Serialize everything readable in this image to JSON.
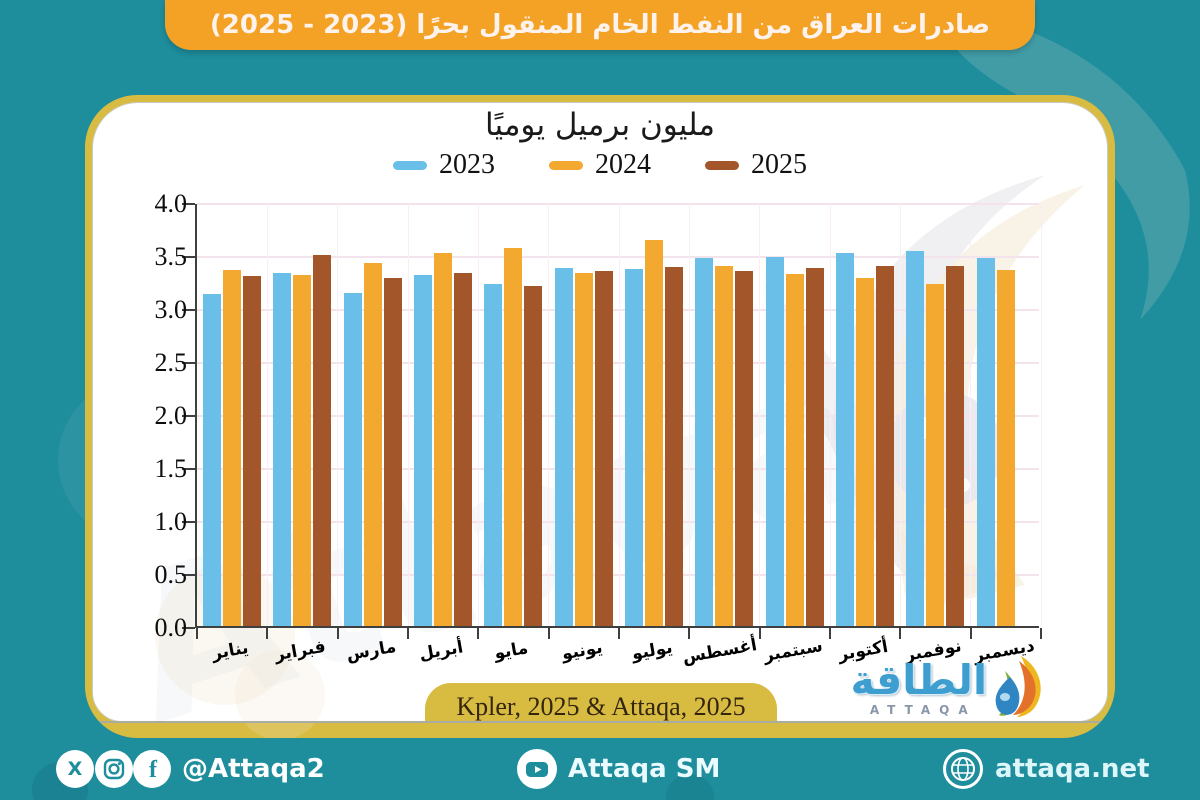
{
  "header": {
    "title": "صادرات العراق من النفط الخام المنقول بحرًا (2023 - 2025)"
  },
  "chart_data": {
    "type": "bar",
    "title": "مليون برميل يوميًا",
    "categories": [
      "يناير",
      "فبراير",
      "مارس",
      "أبريل",
      "مايو",
      "يونيو",
      "يوليو",
      "أغسطس",
      "سبتمبر",
      "أكتوبر",
      "نوفمبر",
      "ديسمبر"
    ],
    "series": [
      {
        "name": "2023",
        "color": "#6abfe9",
        "values": [
          3.13,
          3.33,
          3.14,
          3.31,
          3.23,
          3.38,
          3.37,
          3.47,
          3.48,
          3.52,
          3.54,
          3.47
        ]
      },
      {
        "name": "2024",
        "color": "#f3a82f",
        "values": [
          3.36,
          3.31,
          3.42,
          3.52,
          3.57,
          3.33,
          3.64,
          3.4,
          3.32,
          3.28,
          3.23,
          3.36
        ]
      },
      {
        "name": "2025",
        "color": "#a3562a",
        "values": [
          3.3,
          3.5,
          3.28,
          3.33,
          3.21,
          3.35,
          3.39,
          3.35,
          3.38,
          3.4,
          3.4,
          null
        ]
      }
    ],
    "ylim": [
      0,
      4.0
    ],
    "ytick_step": 0.5,
    "yticks": [
      "0.0",
      "0.5",
      "1.0",
      "1.5",
      "2.0",
      "2.5",
      "3.0",
      "3.5",
      "4.0"
    ],
    "grid": true,
    "legend_position": "top"
  },
  "source": {
    "label": "Kpler, 2025 & Attaqa, 2025"
  },
  "logo": {
    "arabic": "الطاقة",
    "latin": "ATTAQA"
  },
  "watermark_text": "Attaqa",
  "footer": {
    "social_handle": "@Attaqa2",
    "youtube_label": "Attaqa SM",
    "website": "attaqa.net"
  },
  "colors": {
    "background_teal": "#1e8d9c",
    "header_orange": "#f4a226",
    "card_gold": "#d8bb41",
    "bar_2023": "#6abfe9",
    "bar_2024": "#f3a82f",
    "bar_2025": "#a3562a",
    "axis": "#3f3f3f",
    "grid_pink": "#f3e3ec"
  }
}
